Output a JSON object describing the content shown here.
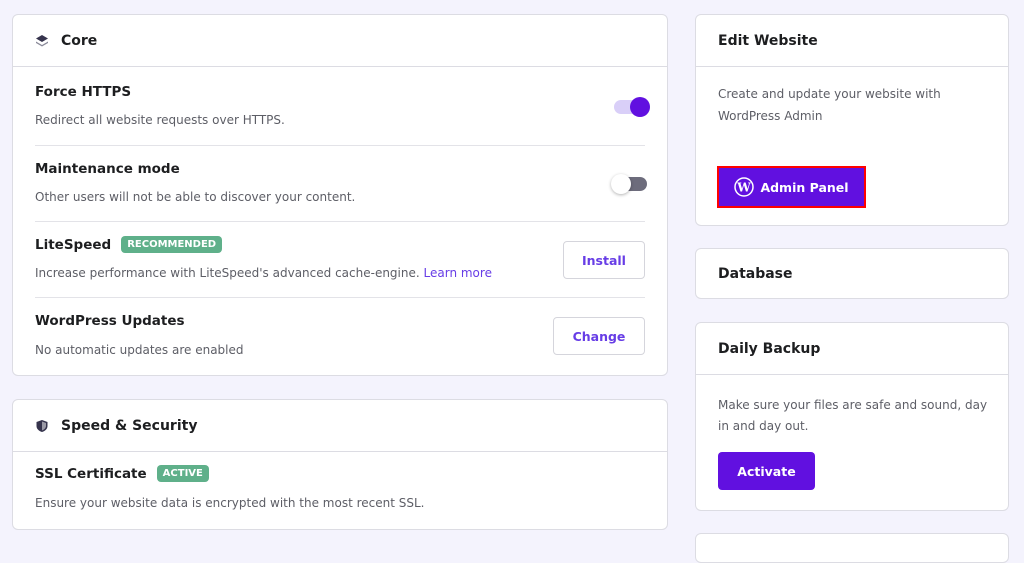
{
  "core": {
    "title": "Core",
    "rows": [
      {
        "title": "Force HTTPS",
        "desc": "Redirect all website requests over HTTPS.",
        "toggle_on": true
      },
      {
        "title": "Maintenance mode",
        "desc": "Other users will not be able to discover your content.",
        "toggle_on": false
      },
      {
        "title": "LiteSpeed",
        "badge": "RECOMMENDED",
        "desc": "Increase performance with LiteSpeed's advanced cache-engine.",
        "link": "Learn more",
        "button": "Install"
      },
      {
        "title": "WordPress Updates",
        "desc": "No automatic updates are enabled",
        "button": "Change"
      }
    ]
  },
  "speed": {
    "title": "Speed & Security",
    "rows": [
      {
        "title": "SSL Certificate",
        "badge": "ACTIVE",
        "desc": "Ensure your website data is encrypted with the most recent SSL."
      }
    ]
  },
  "edit": {
    "title": "Edit Website",
    "desc": "Create and update your website with WordPress Admin",
    "button": "Admin Panel"
  },
  "database": {
    "title": "Database"
  },
  "backup": {
    "title": "Daily Backup",
    "desc": "Make sure your files are safe and sound, day in and day out.",
    "button": "Activate"
  },
  "colors": {
    "accent": "#673de6",
    "primary_button": "#6110e0",
    "badge": "#5fb08a",
    "highlight_border": "#ff0000"
  }
}
